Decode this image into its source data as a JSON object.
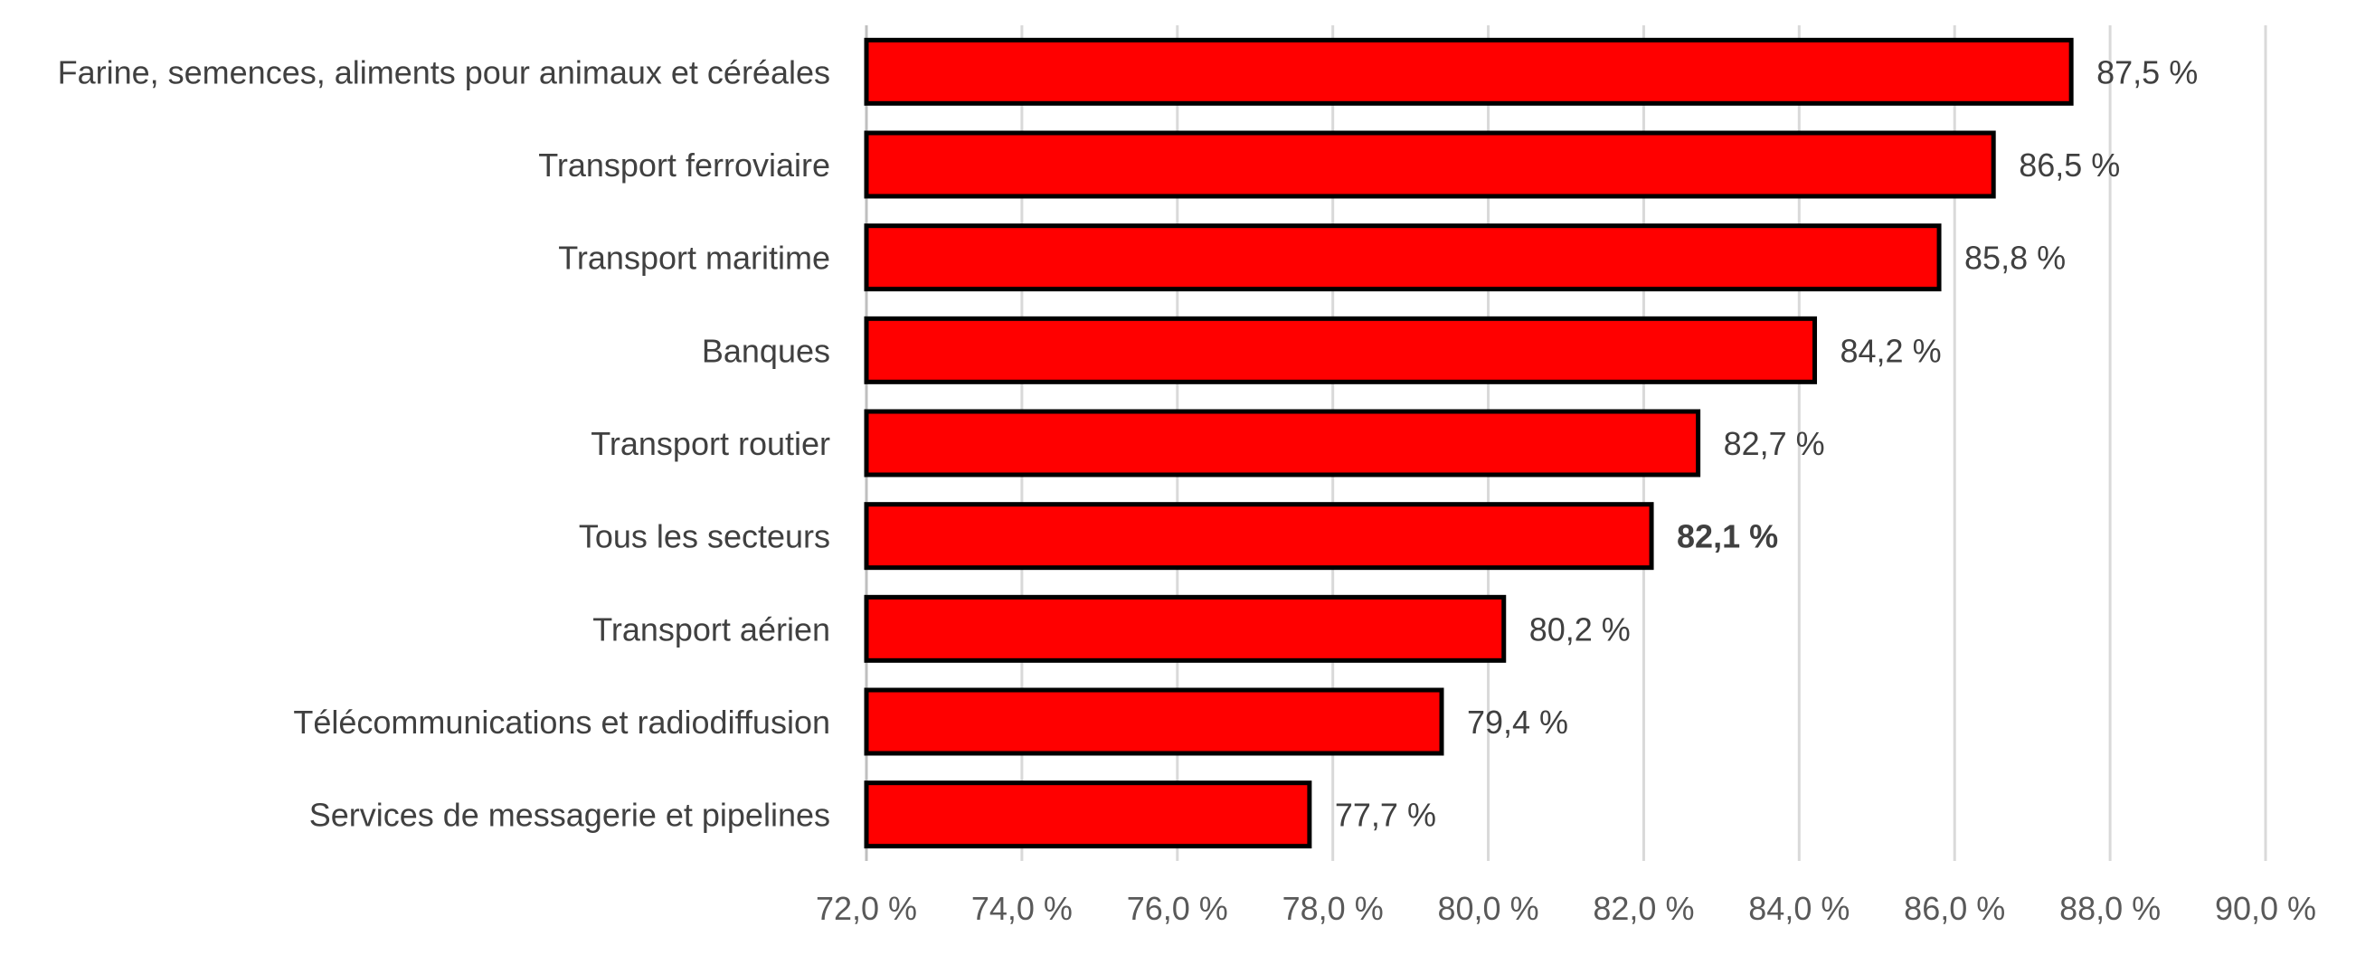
{
  "chart_data": {
    "type": "bar",
    "orientation": "horizontal",
    "title": "",
    "xlabel": "",
    "ylabel": "",
    "categories": [
      "Farine, semences, aliments pour animaux et céréales",
      "Transport ferroviaire",
      "Transport maritime",
      "Banques",
      "Transport routier",
      "Tous les secteurs",
      "Transport aérien",
      "Télécommunications et radiodiffusion",
      "Services de messagerie et pipelines"
    ],
    "values": [
      87.5,
      86.5,
      85.8,
      84.2,
      82.7,
      82.1,
      80.2,
      79.4,
      77.7
    ],
    "value_labels": [
      "87,5 %",
      "86,5 %",
      "85,8 %",
      "84,2 %",
      "82,7 %",
      "82,1 %",
      "80,2 %",
      "79,4 %",
      "77,7 %"
    ],
    "bold_category": "Tous les secteurs",
    "xlim": [
      72,
      90
    ],
    "x_ticks": [
      72,
      74,
      76,
      78,
      80,
      82,
      84,
      86,
      88,
      90
    ],
    "x_tick_labels": [
      "72,0 %",
      "74,0 %",
      "76,0 %",
      "78,0 %",
      "80,0 %",
      "82,0 %",
      "84,0 %",
      "86,0 %",
      "88,0 %",
      "90,0 %"
    ],
    "grid": "vertical",
    "legend": "none",
    "bar_color": "#ff0000",
    "bar_border_color": "#000000"
  }
}
